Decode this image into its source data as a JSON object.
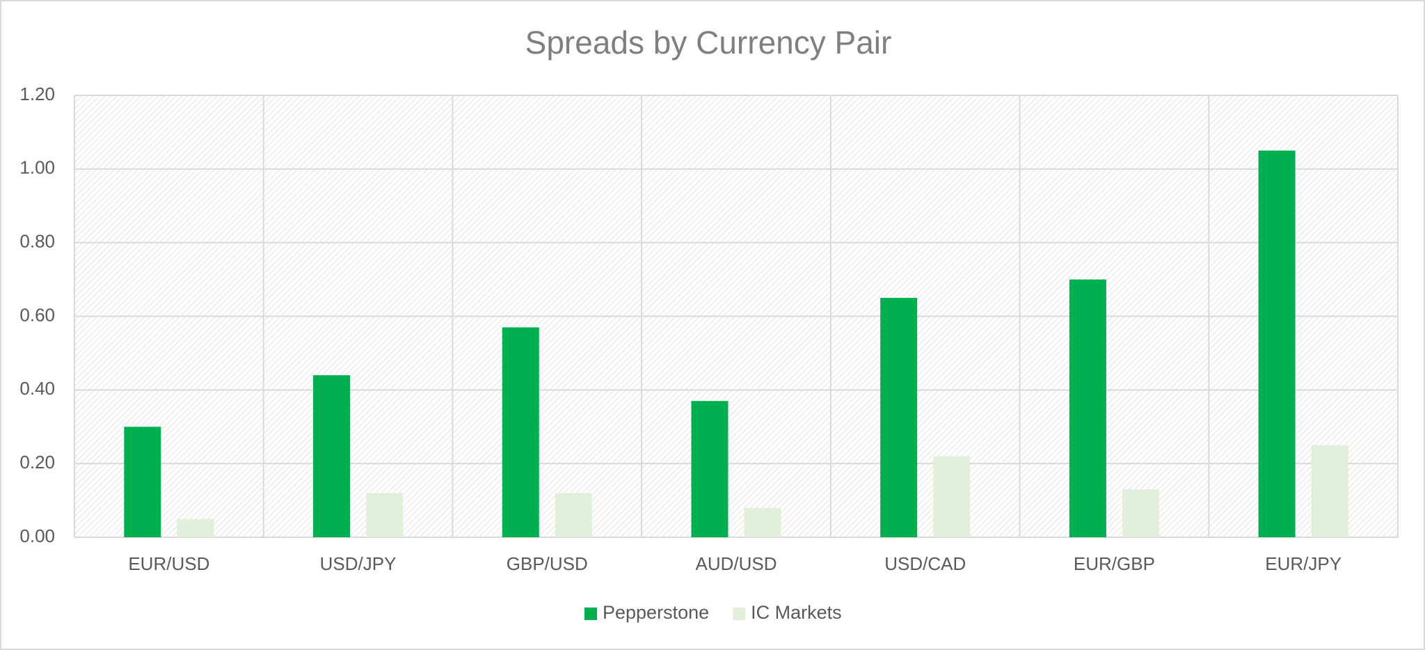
{
  "chart_data": {
    "type": "bar",
    "title": "Spreads by Currency Pair",
    "categories": [
      "EUR/USD",
      "USD/JPY",
      "GBP/USD",
      "AUD/USD",
      "USD/CAD",
      "EUR/GBP",
      "EUR/JPY"
    ],
    "series": [
      {
        "name": "Pepperstone",
        "color": "#00b050",
        "values": [
          0.3,
          0.44,
          0.57,
          0.37,
          0.65,
          0.7,
          1.05
        ]
      },
      {
        "name": "IC Markets",
        "color": "#e2efda",
        "values": [
          0.05,
          0.12,
          0.12,
          0.08,
          0.22,
          0.13,
          0.25
        ]
      }
    ],
    "ylim": [
      0,
      1.2
    ],
    "yticks": [
      {
        "value": 0,
        "label": "0.00"
      },
      {
        "value": 0.2,
        "label": "0.20"
      },
      {
        "value": 0.4,
        "label": "0.40"
      },
      {
        "value": 0.6,
        "label": "0.60"
      },
      {
        "value": 0.8,
        "label": "0.80"
      },
      {
        "value": 1.0,
        "label": "1.00"
      },
      {
        "value": 1.2,
        "label": "1.20"
      }
    ],
    "grid": true,
    "legend": "bottom"
  }
}
